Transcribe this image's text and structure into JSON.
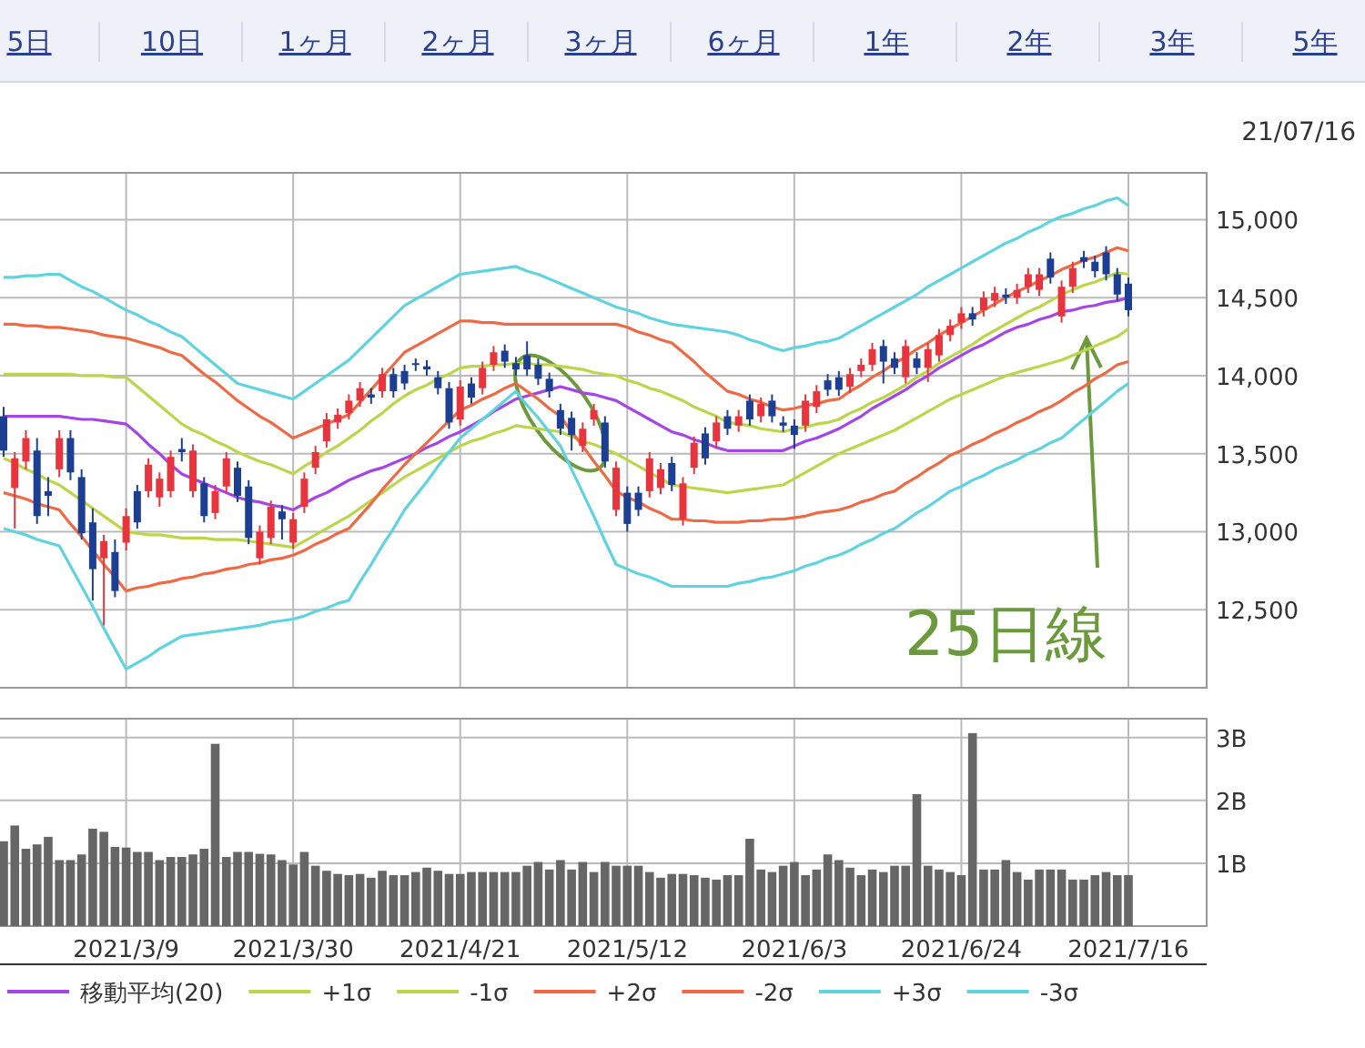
{
  "chart_data": [
    {
      "type": "candlestick",
      "categories": [
        null,
        null,
        null,
        null,
        null,
        null,
        null,
        null,
        null,
        null,
        null,
        "2021/3/9",
        null,
        null,
        null,
        null,
        null,
        null,
        null,
        null,
        null,
        null,
        null,
        null,
        null,
        null,
        "2021/3/30",
        null,
        null,
        null,
        null,
        null,
        null,
        null,
        null,
        null,
        null,
        null,
        null,
        null,
        null,
        "2021/4/21",
        null,
        null,
        null,
        null,
        null,
        null,
        null,
        null,
        null,
        null,
        null,
        null,
        null,
        null,
        "2021/5/12",
        null,
        null,
        null,
        null,
        null,
        null,
        null,
        null,
        null,
        null,
        null,
        null,
        null,
        null,
        "2021/6/3",
        null,
        null,
        null,
        null,
        null,
        null,
        null,
        null,
        null,
        null,
        null,
        null,
        null,
        null,
        "2021/6/24",
        null,
        null,
        null,
        null,
        null,
        null,
        null,
        null,
        null,
        null,
        null,
        null,
        null,
        null,
        "2021/7/16"
      ],
      "ohlc": [
        [
          13740,
          13800,
          13480,
          13520
        ],
        [
          13280,
          13510,
          13020,
          13470
        ],
        [
          13450,
          13650,
          13400,
          13600
        ],
        [
          13520,
          13600,
          13050,
          13100
        ],
        [
          13260,
          13350,
          13100,
          13230
        ],
        [
          13400,
          13650,
          13350,
          13600
        ],
        [
          13600,
          13650,
          13330,
          13380
        ],
        [
          13350,
          13400,
          12950,
          12990
        ],
        [
          13060,
          13150,
          12560,
          12760
        ],
        [
          12830,
          12980,
          12400,
          12940
        ],
        [
          12870,
          12950,
          12580,
          12620
        ],
        [
          12930,
          13150,
          12880,
          13100
        ],
        [
          13260,
          13300,
          13020,
          13060
        ],
        [
          13260,
          13470,
          13220,
          13430
        ],
        [
          13220,
          13380,
          13160,
          13340
        ],
        [
          13260,
          13520,
          13220,
          13480
        ],
        [
          13530,
          13600,
          13450,
          13510
        ],
        [
          13260,
          13560,
          13220,
          13520
        ],
        [
          13310,
          13350,
          13060,
          13100
        ],
        [
          13120,
          13300,
          13080,
          13260
        ],
        [
          13290,
          13510,
          13250,
          13470
        ],
        [
          13410,
          13450,
          13190,
          13230
        ],
        [
          13290,
          13330,
          12920,
          12960
        ],
        [
          12830,
          13040,
          12790,
          13000
        ],
        [
          12960,
          13200,
          12920,
          13160
        ],
        [
          13130,
          13170,
          12950,
          13080
        ],
        [
          12930,
          13120,
          12890,
          13080
        ],
        [
          13160,
          13380,
          13120,
          13340
        ],
        [
          13410,
          13550,
          13370,
          13510
        ],
        [
          13580,
          13760,
          13540,
          13720
        ],
        [
          13700,
          13790,
          13660,
          13750
        ],
        [
          13760,
          13880,
          13720,
          13840
        ],
        [
          13840,
          13960,
          13800,
          13920
        ],
        [
          13880,
          13920,
          13820,
          13860
        ],
        [
          13900,
          14050,
          13860,
          14010
        ],
        [
          14010,
          14050,
          13860,
          13900
        ],
        [
          14030,
          14070,
          13910,
          13950
        ],
        [
          14080,
          14110,
          14030,
          14070
        ],
        [
          14060,
          14100,
          14000,
          14040
        ],
        [
          13990,
          14030,
          13880,
          13920
        ],
        [
          13920,
          13960,
          13660,
          13700
        ],
        [
          13720,
          13970,
          13680,
          13930
        ],
        [
          13950,
          13990,
          13820,
          13860
        ],
        [
          13920,
          14090,
          13880,
          14050
        ],
        [
          14070,
          14190,
          14030,
          14150
        ],
        [
          14160,
          14200,
          14050,
          14090
        ],
        [
          14080,
          14120,
          14000,
          14040
        ],
        [
          14130,
          14220,
          14000,
          14040
        ],
        [
          14070,
          14110,
          13940,
          13980
        ],
        [
          13980,
          14020,
          13860,
          13900
        ],
        [
          13780,
          13820,
          13620,
          13660
        ],
        [
          13730,
          13770,
          13520,
          13620
        ],
        [
          13550,
          13700,
          13510,
          13660
        ],
        [
          13720,
          13820,
          13680,
          13780
        ],
        [
          13700,
          13740,
          13410,
          13450
        ],
        [
          13140,
          13450,
          13100,
          13410
        ],
        [
          13250,
          13290,
          13000,
          13050
        ],
        [
          13250,
          13290,
          13100,
          13140
        ],
        [
          13260,
          13510,
          13220,
          13470
        ],
        [
          13280,
          13440,
          13240,
          13400
        ],
        [
          13440,
          13480,
          13260,
          13300
        ],
        [
          13080,
          13350,
          13040,
          13310
        ],
        [
          13410,
          13610,
          13370,
          13570
        ],
        [
          13630,
          13670,
          13430,
          13470
        ],
        [
          13580,
          13740,
          13540,
          13700
        ],
        [
          13740,
          13780,
          13620,
          13660
        ],
        [
          13680,
          13780,
          13640,
          13740
        ],
        [
          13840,
          13880,
          13680,
          13720
        ],
        [
          13740,
          13860,
          13700,
          13820
        ],
        [
          13840,
          13880,
          13700,
          13740
        ],
        [
          13700,
          13740,
          13640,
          13680
        ],
        [
          13680,
          13720,
          13530,
          13620
        ],
        [
          13680,
          13880,
          13640,
          13840
        ],
        [
          13800,
          13940,
          13760,
          13900
        ],
        [
          13970,
          14010,
          13870,
          13910
        ],
        [
          13990,
          14030,
          13870,
          13910
        ],
        [
          13930,
          14050,
          13890,
          14010
        ],
        [
          14030,
          14110,
          13990,
          14070
        ],
        [
          14070,
          14210,
          14030,
          14170
        ],
        [
          14190,
          14230,
          13950,
          14090
        ],
        [
          14110,
          14150,
          14010,
          14050
        ],
        [
          13990,
          14230,
          13950,
          14190
        ],
        [
          14110,
          14150,
          14010,
          14050
        ],
        [
          14050,
          14210,
          13960,
          14170
        ],
        [
          14130,
          14300,
          14090,
          14260
        ],
        [
          14260,
          14360,
          14220,
          14320
        ],
        [
          14340,
          14440,
          14300,
          14400
        ],
        [
          14400,
          14440,
          14320,
          14360
        ],
        [
          14420,
          14540,
          14380,
          14500
        ],
        [
          14480,
          14570,
          14440,
          14530
        ],
        [
          14520,
          14560,
          14460,
          14500
        ],
        [
          14500,
          14590,
          14460,
          14550
        ],
        [
          14570,
          14690,
          14530,
          14650
        ],
        [
          14550,
          14690,
          14510,
          14650
        ],
        [
          14750,
          14790,
          14590,
          14630
        ],
        [
          14380,
          14610,
          14340,
          14570
        ],
        [
          14570,
          14730,
          14530,
          14690
        ],
        [
          14760,
          14800,
          14690,
          14730
        ],
        [
          14730,
          14770,
          14630,
          14670
        ],
        [
          14790,
          14830,
          14610,
          14650
        ],
        [
          14650,
          14690,
          14480,
          14520
        ],
        [
          14590,
          14630,
          14380,
          14420
        ]
      ],
      "colors": [
        "#1c3f94",
        "#e8343c",
        "#e8343c",
        "#1c3f94",
        "#1c3f94",
        "#e8343c",
        "#1c3f94",
        "#1c3f94",
        "#1c3f94",
        "#e8343c",
        "#1c3f94",
        "#e8343c",
        "#1c3f94",
        "#e8343c",
        "#e8343c",
        "#e8343c",
        "#1c3f94",
        "#e8343c",
        "#1c3f94",
        "#e8343c",
        "#e8343c",
        "#1c3f94",
        "#1c3f94",
        "#e8343c",
        "#e8343c",
        "#1c3f94",
        "#e8343c",
        "#e8343c",
        "#e8343c",
        "#e8343c",
        "#e8343c",
        "#e8343c",
        "#e8343c",
        "#1c3f94",
        "#e8343c",
        "#1c3f94",
        "#1c3f94",
        "#1c3f94",
        "#1c3f94",
        "#1c3f94",
        "#1c3f94",
        "#e8343c",
        "#1c3f94",
        "#e8343c",
        "#e8343c",
        "#1c3f94",
        "#1c3f94",
        "#1c3f94",
        "#1c3f94",
        "#1c3f94",
        "#1c3f94",
        "#1c3f94",
        "#e8343c",
        "#e8343c",
        "#1c3f94",
        "#e8343c",
        "#1c3f94",
        "#1c3f94",
        "#e8343c",
        "#e8343c",
        "#1c3f94",
        "#e8343c",
        "#e8343c",
        "#1c3f94",
        "#e8343c",
        "#1c3f94",
        "#e8343c",
        "#1c3f94",
        "#e8343c",
        "#1c3f94",
        "#1c3f94",
        "#1c3f94",
        "#e8343c",
        "#e8343c",
        "#1c3f94",
        "#1c3f94",
        "#e8343c",
        "#e8343c",
        "#e8343c",
        "#1c3f94",
        "#1c3f94",
        "#e8343c",
        "#1c3f94",
        "#e8343c",
        "#e8343c",
        "#e8343c",
        "#e8343c",
        "#1c3f94",
        "#e8343c",
        "#e8343c",
        "#1c3f94",
        "#e8343c",
        "#e8343c",
        "#e8343c",
        "#1c3f94",
        "#e8343c",
        "#e8343c",
        "#1c3f94",
        "#1c3f94",
        "#1c3f94",
        "#1c3f94",
        "#1c3f94"
      ],
      "series": [
        {
          "type": "line",
          "name": "移動平均(20)",
          "color": "#a545e6",
          "values": [
            13740,
            13740,
            13740,
            13740,
            13740,
            13740,
            13730,
            13720,
            13720,
            13710,
            13700,
            13690,
            13630,
            13560,
            13500,
            13430,
            13370,
            13340,
            13310,
            13280,
            13250,
            13220,
            13200,
            13190,
            13170,
            13160,
            13140,
            13180,
            13220,
            13250,
            13290,
            13330,
            13360,
            13390,
            13410,
            13440,
            13470,
            13500,
            13540,
            13570,
            13610,
            13640,
            13680,
            13720,
            13770,
            13810,
            13850,
            13870,
            13890,
            13910,
            13930,
            13910,
            13890,
            13880,
            13860,
            13840,
            13800,
            13760,
            13720,
            13680,
            13640,
            13620,
            13590,
            13570,
            13540,
            13520,
            13520,
            13520,
            13520,
            13520,
            13520,
            13550,
            13580,
            13600,
            13630,
            13660,
            13700,
            13740,
            13790,
            13830,
            13870,
            13910,
            13960,
            14000,
            14050,
            14090,
            14130,
            14170,
            14200,
            14240,
            14280,
            14310,
            14330,
            14360,
            14380,
            14410,
            14420,
            14440,
            14450,
            14470,
            14480,
            14500
          ]
        },
        {
          "type": "line",
          "name": "+1σ",
          "color": "#bcd54a",
          "values": [
            14010,
            14010,
            14010,
            14010,
            14010,
            14010,
            14010,
            14000,
            14000,
            14000,
            13990,
            13990,
            13930,
            13870,
            13810,
            13750,
            13690,
            13650,
            13620,
            13580,
            13550,
            13510,
            13480,
            13450,
            13430,
            13400,
            13370,
            13420,
            13460,
            13510,
            13550,
            13600,
            13650,
            13710,
            13760,
            13820,
            13870,
            13910,
            13940,
            13980,
            14010,
            14050,
            14060,
            14060,
            14070,
            14070,
            14080,
            14080,
            14070,
            14070,
            14060,
            14050,
            14040,
            14020,
            14010,
            14000,
            13970,
            13950,
            13920,
            13900,
            13870,
            13840,
            13800,
            13770,
            13740,
            13700,
            13690,
            13680,
            13660,
            13650,
            13640,
            13660,
            13670,
            13690,
            13700,
            13720,
            13760,
            13790,
            13830,
            13860,
            13900,
            13940,
            13990,
            14030,
            14080,
            14120,
            14160,
            14200,
            14250,
            14290,
            14330,
            14370,
            14410,
            14440,
            14480,
            14520,
            14550,
            14580,
            14600,
            14630,
            14660,
            14650
          ]
        },
        {
          "type": "line",
          "name": "-1σ",
          "color": "#bcd54a",
          "values": [
            13470,
            13440,
            13400,
            13370,
            13330,
            13300,
            13250,
            13200,
            13150,
            13100,
            13050,
            13000,
            12990,
            12980,
            12980,
            12970,
            12960,
            12960,
            12960,
            12950,
            12950,
            12950,
            12940,
            12930,
            12920,
            12910,
            12900,
            12940,
            12980,
            13020,
            13060,
            13100,
            13150,
            13200,
            13250,
            13300,
            13350,
            13390,
            13430,
            13470,
            13510,
            13550,
            13580,
            13600,
            13630,
            13650,
            13680,
            13670,
            13660,
            13650,
            13640,
            13610,
            13580,
            13560,
            13530,
            13500,
            13460,
            13420,
            13380,
            13340,
            13300,
            13290,
            13280,
            13270,
            13260,
            13250,
            13260,
            13270,
            13280,
            13290,
            13300,
            13340,
            13380,
            13420,
            13460,
            13500,
            13530,
            13560,
            13590,
            13620,
            13650,
            13690,
            13730,
            13770,
            13810,
            13850,
            13880,
            13910,
            13940,
            13970,
            14000,
            14020,
            14040,
            14060,
            14080,
            14100,
            14130,
            14160,
            14190,
            14220,
            14250,
            14300
          ]
        },
        {
          "type": "line",
          "name": "+2σ",
          "color": "#ee6a45",
          "values": [
            14330,
            14330,
            14320,
            14320,
            14310,
            14310,
            14300,
            14290,
            14280,
            14260,
            14250,
            14240,
            14220,
            14200,
            14180,
            14150,
            14130,
            14070,
            14010,
            13960,
            13900,
            13840,
            13790,
            13740,
            13700,
            13650,
            13600,
            13630,
            13660,
            13690,
            13720,
            13750,
            13830,
            13910,
            13990,
            14070,
            14150,
            14190,
            14230,
            14270,
            14310,
            14350,
            14350,
            14340,
            14340,
            14330,
            14330,
            14330,
            14330,
            14330,
            14330,
            14330,
            14330,
            14330,
            14330,
            14330,
            14310,
            14280,
            14260,
            14230,
            14210,
            14150,
            14090,
            14020,
            13960,
            13900,
            13880,
            13850,
            13830,
            13800,
            13780,
            13790,
            13810,
            13820,
            13840,
            13850,
            13900,
            13940,
            13990,
            14030,
            14080,
            14120,
            14170,
            14210,
            14260,
            14300,
            14340,
            14380,
            14420,
            14460,
            14500,
            14540,
            14570,
            14610,
            14640,
            14680,
            14710,
            14740,
            14760,
            14790,
            14820,
            14800
          ]
        },
        {
          "type": "line",
          "name": "-2σ",
          "color": "#ee6a45",
          "values": [
            13250,
            13230,
            13210,
            13180,
            13160,
            13140,
            13050,
            12970,
            12880,
            12790,
            12710,
            12620,
            12640,
            12650,
            12670,
            12680,
            12700,
            12710,
            12730,
            12740,
            12760,
            12770,
            12790,
            12800,
            12820,
            12830,
            12850,
            12880,
            12920,
            12950,
            12990,
            13020,
            13100,
            13180,
            13270,
            13350,
            13430,
            13500,
            13570,
            13640,
            13710,
            13780,
            13810,
            13850,
            13880,
            13920,
            13950,
            13900,
            13850,
            13790,
            13740,
            13640,
            13550,
            13450,
            13360,
            13260,
            13220,
            13190,
            13150,
            13120,
            13080,
            13080,
            13070,
            13070,
            13060,
            13060,
            13060,
            13070,
            13070,
            13080,
            13080,
            13090,
            13100,
            13120,
            13130,
            13140,
            13160,
            13190,
            13210,
            13240,
            13260,
            13310,
            13350,
            13400,
            13440,
            13490,
            13520,
            13560,
            13590,
            13630,
            13660,
            13700,
            13730,
            13770,
            13800,
            13840,
            13890,
            13930,
            13980,
            14020,
            14070,
            14090
          ]
        },
        {
          "type": "line",
          "name": "+3σ",
          "color": "#5fd3e0",
          "values": [
            14630,
            14630,
            14640,
            14640,
            14650,
            14650,
            14610,
            14570,
            14540,
            14500,
            14460,
            14420,
            14390,
            14350,
            14320,
            14280,
            14250,
            14190,
            14130,
            14070,
            14010,
            13950,
            13930,
            13910,
            13890,
            13870,
            13850,
            13900,
            13950,
            14000,
            14050,
            14100,
            14170,
            14240,
            14310,
            14380,
            14450,
            14490,
            14530,
            14570,
            14610,
            14650,
            14660,
            14670,
            14680,
            14690,
            14700,
            14670,
            14650,
            14620,
            14590,
            14560,
            14530,
            14500,
            14470,
            14440,
            14420,
            14400,
            14370,
            14350,
            14330,
            14320,
            14310,
            14300,
            14290,
            14280,
            14260,
            14230,
            14210,
            14180,
            14160,
            14180,
            14190,
            14210,
            14220,
            14240,
            14280,
            14320,
            14360,
            14400,
            14440,
            14480,
            14520,
            14570,
            14610,
            14650,
            14690,
            14730,
            14770,
            14810,
            14850,
            14880,
            14920,
            14950,
            14990,
            15020,
            15040,
            15070,
            15090,
            15120,
            15140,
            15090
          ]
        },
        {
          "type": "line",
          "name": "-3σ",
          "color": "#5fd3e0",
          "values": [
            13020,
            13000,
            12980,
            12950,
            12930,
            12910,
            12780,
            12650,
            12520,
            12380,
            12250,
            12120,
            12160,
            12200,
            12250,
            12290,
            12330,
            12340,
            12350,
            12360,
            12370,
            12380,
            12390,
            12400,
            12420,
            12430,
            12440,
            12460,
            12490,
            12510,
            12540,
            12560,
            12680,
            12790,
            12910,
            13020,
            13140,
            13230,
            13320,
            13420,
            13510,
            13600,
            13660,
            13720,
            13780,
            13840,
            13900,
            13810,
            13730,
            13640,
            13550,
            13400,
            13250,
            13100,
            12940,
            12790,
            12760,
            12730,
            12710,
            12680,
            12650,
            12650,
            12650,
            12650,
            12650,
            12650,
            12670,
            12680,
            12700,
            12710,
            12730,
            12750,
            12780,
            12800,
            12830,
            12850,
            12880,
            12920,
            12950,
            12990,
            13020,
            13070,
            13120,
            13160,
            13210,
            13260,
            13290,
            13330,
            13360,
            13400,
            13430,
            13460,
            13500,
            13530,
            13570,
            13600,
            13660,
            13720,
            13780,
            13840,
            13900,
            13950
          ]
        }
      ],
      "ylim": [
        12000,
        15300
      ],
      "yticks": [
        {
          "value": 12500,
          "label": "12,500"
        },
        {
          "value": 13000,
          "label": "13,000"
        },
        {
          "value": 13500,
          "label": "13,500"
        },
        {
          "value": 14000,
          "label": "14,000"
        },
        {
          "value": 14500,
          "label": "14,500"
        },
        {
          "value": 15000,
          "label": "15,000"
        }
      ],
      "tick_labels": "y",
      "grid": true,
      "legend": "bottom",
      "annotations": [
        "5日",
        "10日",
        "1ヶ月",
        "2ヶ月",
        "3ヶ月",
        "6ヶ月",
        "1年",
        "2年",
        "3年",
        "5年",
        "21/07/16",
        "25日線"
      ]
    },
    {
      "type": "bar",
      "categories": [
        null,
        null,
        null,
        null,
        null,
        null,
        null,
        null,
        null,
        null,
        null,
        "2021/3/9",
        null,
        null,
        null,
        null,
        null,
        null,
        null,
        null,
        null,
        null,
        null,
        null,
        null,
        null,
        "2021/3/30",
        null,
        null,
        null,
        null,
        null,
        null,
        null,
        null,
        null,
        null,
        null,
        null,
        null,
        null,
        "2021/4/21",
        null,
        null,
        null,
        null,
        null,
        null,
        null,
        null,
        null,
        null,
        null,
        null,
        null,
        null,
        "2021/5/12",
        null,
        null,
        null,
        null,
        null,
        null,
        null,
        null,
        null,
        null,
        null,
        null,
        null,
        null,
        "2021/6/3",
        null,
        null,
        null,
        null,
        null,
        null,
        null,
        null,
        null,
        null,
        null,
        null,
        null,
        null,
        "2021/6/24",
        null,
        null,
        null,
        null,
        null,
        null,
        null,
        null,
        null,
        null,
        null,
        null,
        null,
        null,
        "2021/7/16"
      ],
      "values": [
        1.35,
        1.6,
        1.23,
        1.3,
        1.42,
        1.05,
        1.05,
        1.14,
        1.55,
        1.5,
        1.26,
        1.25,
        1.18,
        1.18,
        1.05,
        1.1,
        1.1,
        1.14,
        1.23,
        2.9,
        1.1,
        1.18,
        1.18,
        1.15,
        1.14,
        1.05,
        0.98,
        1.18,
        0.96,
        0.88,
        0.83,
        0.81,
        0.83,
        0.77,
        0.88,
        0.81,
        0.81,
        0.86,
        0.93,
        0.88,
        0.83,
        0.83,
        0.86,
        0.86,
        0.86,
        0.86,
        0.86,
        0.96,
        1.02,
        0.9,
        1.05,
        0.9,
        1.02,
        0.86,
        1.02,
        0.96,
        0.96,
        0.96,
        0.86,
        0.77,
        0.83,
        0.83,
        0.81,
        0.77,
        0.74,
        0.81,
        0.81,
        1.39,
        0.9,
        0.86,
        0.96,
        1.02,
        0.81,
        0.9,
        1.14,
        1.05,
        0.93,
        0.81,
        0.9,
        0.86,
        0.96,
        0.96,
        2.1,
        0.96,
        0.9,
        0.86,
        0.81,
        3.07,
        0.9,
        0.9,
        1.05,
        0.86,
        0.74,
        0.9,
        0.9,
        0.9,
        0.74,
        0.74,
        0.81,
        0.86,
        0.81,
        0.81
      ],
      "color": "#666666",
      "ylim": [
        0,
        3.3
      ],
      "yticks": [
        {
          "value": 1,
          "label": "1B"
        },
        {
          "value": 2,
          "label": "2B"
        },
        {
          "value": 3,
          "label": "3B"
        }
      ],
      "grid": true
    }
  ]
}
